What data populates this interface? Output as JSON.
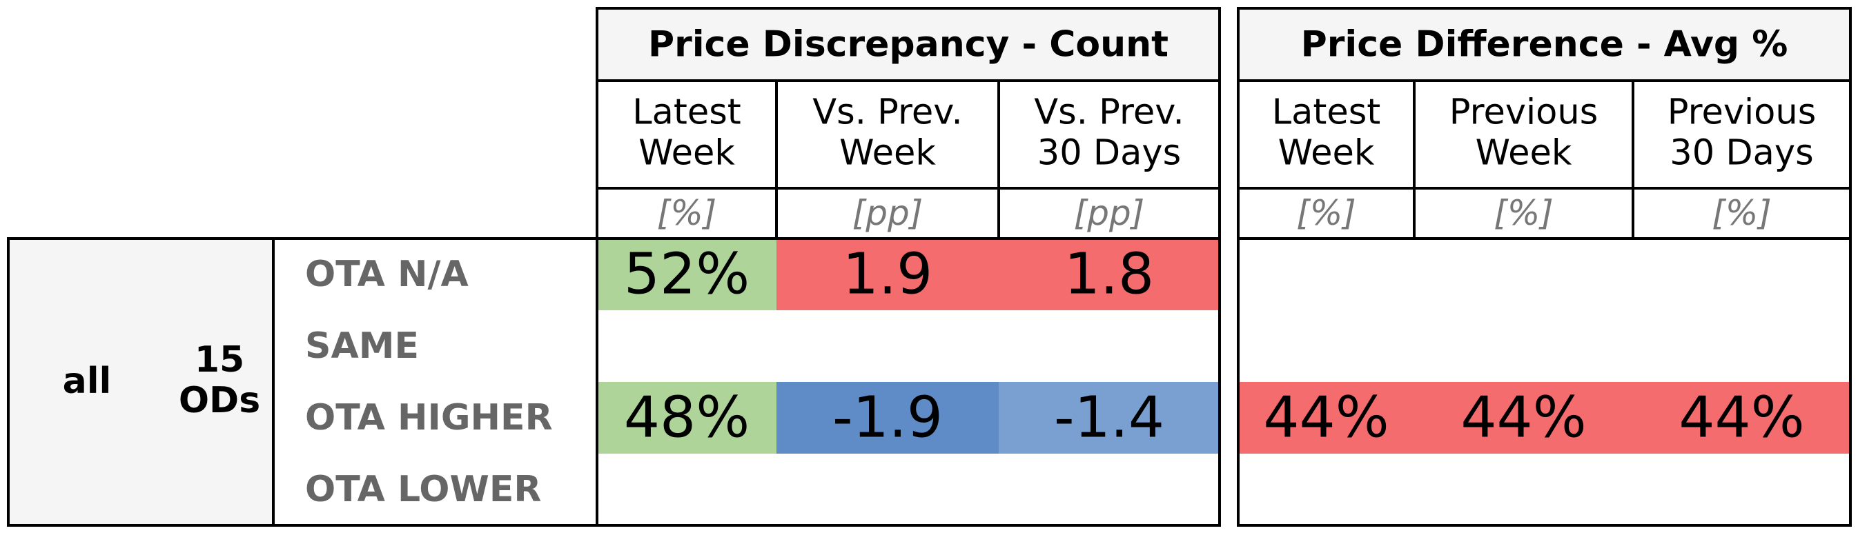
{
  "chart_data": {
    "type": "table",
    "sections": [
      {
        "title": "Price Discrepancy - Count",
        "columns": [
          {
            "label_lines": [
              "Latest",
              "Week"
            ],
            "unit": "[%]"
          },
          {
            "label_lines": [
              "Vs. Prev.",
              "Week"
            ],
            "unit": "[pp]"
          },
          {
            "label_lines": [
              "Vs. Prev.",
              "30 Days"
            ],
            "unit": "[pp]"
          }
        ]
      },
      {
        "title": "Price Difference - Avg %",
        "columns": [
          {
            "label_lines": [
              "Latest",
              "Week"
            ],
            "unit": "[%]"
          },
          {
            "label_lines": [
              "Previous",
              "Week"
            ],
            "unit": "[%]"
          },
          {
            "label_lines": [
              "Previous",
              "30 Days"
            ],
            "unit": "[%]"
          }
        ]
      }
    ],
    "group_label": "all",
    "subgroup_label_lines": [
      "15",
      "ODs"
    ],
    "rows": [
      {
        "label": "OTA N/A",
        "cells": [
          {
            "text": "52%",
            "color": "#aed49a"
          },
          {
            "text": "1.9",
            "color": "#f56c6f"
          },
          {
            "text": "1.8",
            "color": "#f56c6f"
          },
          {
            "text": "",
            "color": null
          },
          {
            "text": "",
            "color": null
          },
          {
            "text": "",
            "color": null
          }
        ]
      },
      {
        "label": "SAME",
        "cells": [
          {
            "text": "",
            "color": null
          },
          {
            "text": "",
            "color": null
          },
          {
            "text": "",
            "color": null
          },
          {
            "text": "",
            "color": null
          },
          {
            "text": "",
            "color": null
          },
          {
            "text": "",
            "color": null
          }
        ]
      },
      {
        "label": "OTA HIGHER",
        "cells": [
          {
            "text": "48%",
            "color": "#aed49a"
          },
          {
            "text": "-1.9",
            "color": "#5f8cc7"
          },
          {
            "text": "-1.4",
            "color": "#7aa0d2"
          },
          {
            "text": "44%",
            "color": "#f56c6f"
          },
          {
            "text": "44%",
            "color": "#f56c6f"
          },
          {
            "text": "44%",
            "color": "#f56c6f"
          }
        ]
      },
      {
        "label": "OTA LOWER",
        "cells": [
          {
            "text": "",
            "color": null
          },
          {
            "text": "",
            "color": null
          },
          {
            "text": "",
            "color": null
          },
          {
            "text": "",
            "color": null
          },
          {
            "text": "",
            "color": null
          },
          {
            "text": "",
            "color": null
          }
        ]
      }
    ]
  },
  "colors": {
    "header_bg": "#f5f5f5",
    "border": "#000000",
    "row_label": "#666666",
    "unit_text": "#777777",
    "text": "#000000"
  }
}
